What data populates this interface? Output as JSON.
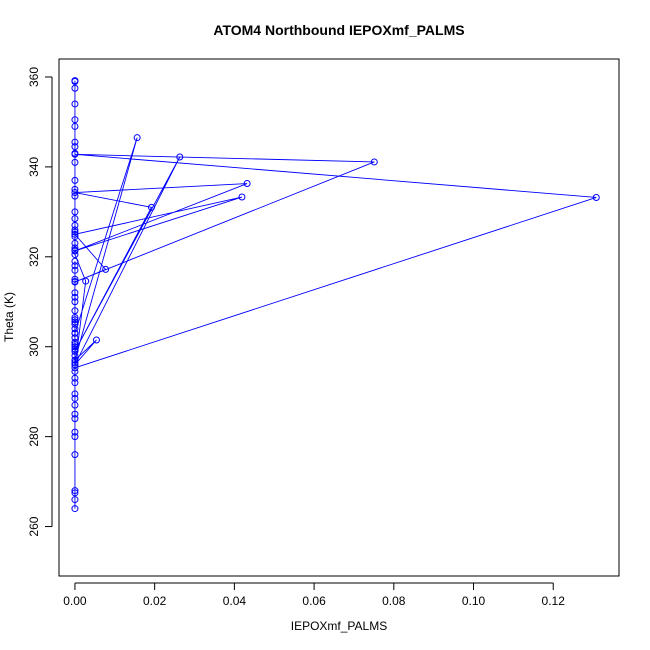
{
  "chart_data": {
    "type": "scatter",
    "title": "ATOM4 Northbound IEPOXmf_PALMS",
    "xlabel": "IEPOXmf_PALMS",
    "ylabel": "Theta (K)",
    "xlim": [
      -0.004,
      0.1365
    ],
    "ylim": [
      249,
      364
    ],
    "x_ticks": [
      0,
      0.02,
      0.04,
      0.06,
      0.08,
      0.1,
      0.12
    ],
    "x_tick_labels": [
      "0.00",
      "0.02",
      "0.04",
      "0.06",
      "0.08",
      "0.10",
      "0.12"
    ],
    "y_ticks": [
      260,
      280,
      300,
      320,
      340,
      360
    ],
    "y_tick_labels": [
      "260",
      "280",
      "300",
      "320",
      "340",
      "360"
    ],
    "grid": false,
    "color": "#0000ff",
    "series": [
      {
        "x": [
          0,
          0,
          0,
          0,
          0,
          0,
          0,
          0,
          0,
          0,
          0,
          0,
          0,
          0,
          0,
          0,
          0,
          0,
          0,
          0,
          0,
          0,
          0,
          0,
          0,
          0,
          0,
          0,
          0,
          0,
          0,
          0,
          0,
          0,
          0,
          0,
          0,
          0,
          0,
          0,
          0,
          0.0156,
          0,
          0.0054,
          0,
          0.0263,
          0,
          0.0192,
          0,
          0.0432,
          0,
          0.0419,
          0,
          0.0077,
          0,
          0.0751,
          0,
          0.1308,
          0,
          0.0027,
          0,
          0,
          0,
          0,
          0,
          0,
          0,
          0,
          0,
          0,
          0,
          0,
          0,
          0,
          0,
          0,
          0,
          0,
          0,
          0,
          0,
          0,
          0
        ],
        "y": [
          264,
          266,
          267.5,
          268,
          276,
          280,
          281,
          284,
          285,
          287,
          288.5,
          289.5,
          292,
          293,
          294.5,
          296,
          296.5,
          297,
          298,
          299,
          299.5,
          300,
          300.5,
          301,
          302,
          303,
          304,
          305,
          305.5,
          306,
          306.5,
          308,
          310,
          311,
          312,
          314.5,
          315,
          317,
          318,
          319,
          303,
          346.5,
          297,
          301.5,
          296,
          342.2,
          299,
          331,
          334.3,
          336.3,
          321.3,
          333.3,
          325,
          317.2,
          314.4,
          341.1,
          342.8,
          333.2,
          295.3,
          314.6,
          320.5,
          321.5,
          322,
          323,
          324.5,
          325.5,
          326,
          327,
          328.5,
          330,
          333.5,
          335,
          337,
          341,
          343,
          344.5,
          345.5,
          349,
          350.5,
          354,
          357.5,
          359,
          359.2
        ]
      }
    ]
  }
}
